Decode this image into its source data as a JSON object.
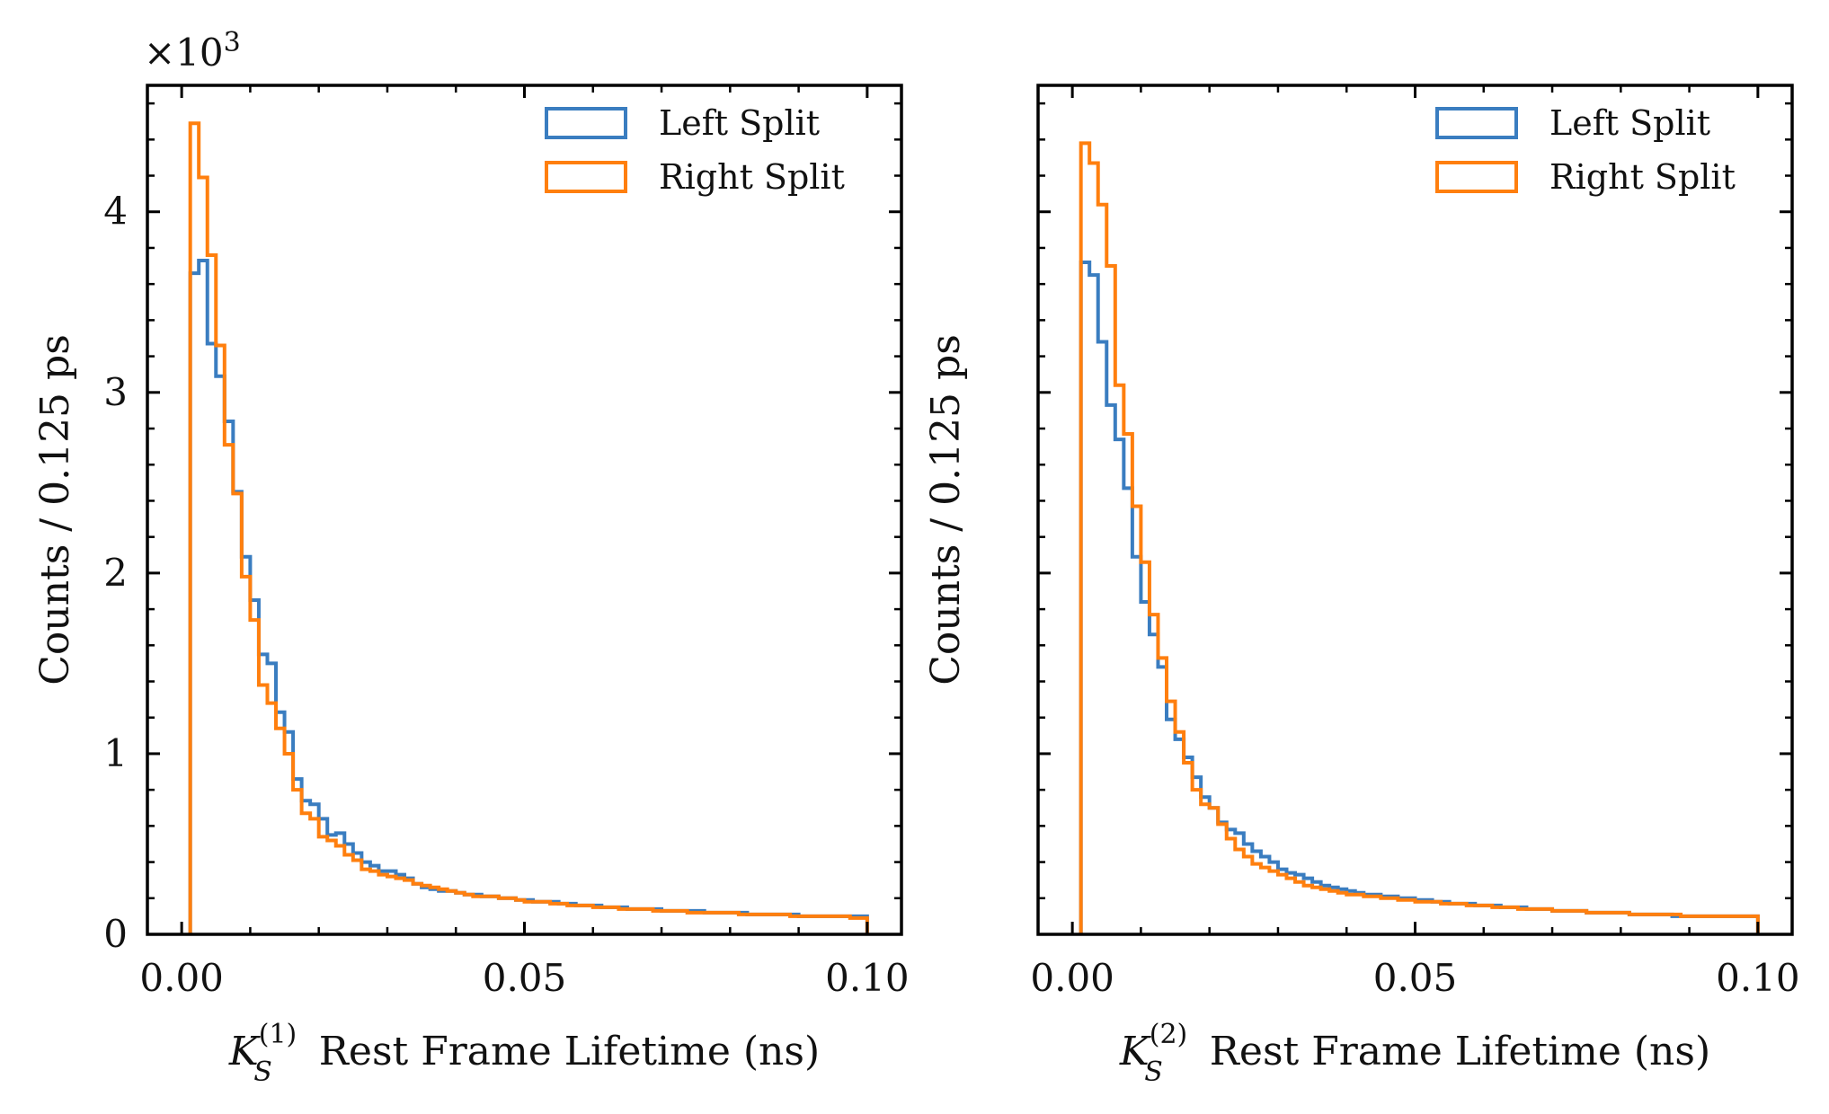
{
  "chart_data": [
    {
      "type": "line",
      "panel": "left",
      "multiplier": "×10",
      "multiplier_exp": "3",
      "xlabel": {
        "symbol": "K",
        "sub": "S",
        "sup": "(1)",
        "text": "Rest Frame Lifetime (ns)"
      },
      "ylabel": "Counts / 0.125 ps",
      "xlim": [
        -0.005,
        0.105
      ],
      "ylim": [
        0,
        4.7
      ],
      "xticks": [
        0.0,
        0.05,
        0.1
      ],
      "xtick_labels": [
        "0.00",
        "0.05",
        "0.10"
      ],
      "yticks": [
        0,
        1,
        2,
        3,
        4
      ],
      "ytick_labels": [
        "0",
        "1",
        "2",
        "3",
        "4"
      ],
      "legend": {
        "position": "top-right"
      },
      "bin_edges": {
        "start": 0.00125,
        "width": 0.00125,
        "count": 79
      },
      "series": [
        {
          "name": "Left Split",
          "color": "#3a7dc0",
          "values": [
            3.66,
            3.73,
            3.27,
            3.09,
            2.84,
            2.45,
            2.09,
            1.85,
            1.55,
            1.5,
            1.23,
            1.12,
            0.86,
            0.74,
            0.72,
            0.64,
            0.55,
            0.56,
            0.5,
            0.45,
            0.4,
            0.38,
            0.35,
            0.35,
            0.33,
            0.31,
            0.28,
            0.26,
            0.25,
            0.24,
            0.24,
            0.23,
            0.22,
            0.22,
            0.21,
            0.21,
            0.2,
            0.2,
            0.19,
            0.19,
            0.18,
            0.18,
            0.18,
            0.17,
            0.17,
            0.16,
            0.16,
            0.16,
            0.15,
            0.15,
            0.15,
            0.14,
            0.14,
            0.14,
            0.14,
            0.13,
            0.13,
            0.13,
            0.13,
            0.13,
            0.12,
            0.12,
            0.12,
            0.12,
            0.12,
            0.11,
            0.11,
            0.11,
            0.11,
            0.11,
            0.11,
            0.1,
            0.1,
            0.1,
            0.1,
            0.1,
            0.1,
            0.1,
            0.1
          ]
        },
        {
          "name": "Right Split",
          "color": "#ff7f0e",
          "values": [
            4.49,
            4.19,
            3.76,
            3.26,
            2.71,
            2.44,
            1.98,
            1.74,
            1.38,
            1.28,
            1.14,
            1.0,
            0.8,
            0.67,
            0.64,
            0.54,
            0.52,
            0.49,
            0.44,
            0.41,
            0.36,
            0.35,
            0.33,
            0.32,
            0.31,
            0.3,
            0.28,
            0.27,
            0.26,
            0.25,
            0.24,
            0.23,
            0.22,
            0.21,
            0.21,
            0.21,
            0.2,
            0.2,
            0.19,
            0.18,
            0.18,
            0.18,
            0.17,
            0.17,
            0.16,
            0.16,
            0.16,
            0.15,
            0.15,
            0.15,
            0.14,
            0.14,
            0.14,
            0.14,
            0.13,
            0.13,
            0.13,
            0.13,
            0.12,
            0.12,
            0.12,
            0.12,
            0.12,
            0.12,
            0.11,
            0.11,
            0.11,
            0.11,
            0.11,
            0.11,
            0.1,
            0.1,
            0.1,
            0.1,
            0.1,
            0.1,
            0.1,
            0.09,
            0.09
          ]
        }
      ]
    },
    {
      "type": "line",
      "panel": "right",
      "xlabel": {
        "symbol": "K",
        "sub": "S",
        "sup": "(2)",
        "text": "Rest Frame Lifetime (ns)"
      },
      "ylabel": "Counts / 0.125 ps",
      "xlim": [
        -0.005,
        0.105
      ],
      "ylim": [
        0,
        4.7
      ],
      "xticks": [
        0.0,
        0.05,
        0.1
      ],
      "xtick_labels": [
        "0.00",
        "0.05",
        "0.10"
      ],
      "yticks": [
        0,
        1,
        2,
        3,
        4
      ],
      "ytick_labels": [],
      "legend": {
        "position": "top-right"
      },
      "bin_edges": {
        "start": 0.00125,
        "width": 0.00125,
        "count": 79
      },
      "series": [
        {
          "name": "Left Split",
          "color": "#3a7dc0",
          "values": [
            3.72,
            3.65,
            3.28,
            2.93,
            2.74,
            2.47,
            2.09,
            1.84,
            1.66,
            1.48,
            1.19,
            1.08,
            0.98,
            0.87,
            0.76,
            0.7,
            0.62,
            0.58,
            0.56,
            0.5,
            0.46,
            0.43,
            0.4,
            0.36,
            0.34,
            0.33,
            0.31,
            0.29,
            0.27,
            0.26,
            0.25,
            0.24,
            0.23,
            0.22,
            0.22,
            0.21,
            0.21,
            0.2,
            0.2,
            0.19,
            0.19,
            0.18,
            0.18,
            0.17,
            0.17,
            0.17,
            0.16,
            0.16,
            0.16,
            0.15,
            0.15,
            0.15,
            0.14,
            0.14,
            0.14,
            0.13,
            0.13,
            0.13,
            0.13,
            0.12,
            0.12,
            0.12,
            0.12,
            0.12,
            0.11,
            0.11,
            0.11,
            0.11,
            0.11,
            0.1,
            0.1,
            0.1,
            0.1,
            0.1,
            0.1,
            0.1,
            0.1,
            0.1,
            0.1
          ]
        },
        {
          "name": "Right Split",
          "color": "#ff7f0e",
          "values": [
            4.38,
            4.27,
            4.04,
            3.7,
            3.04,
            2.77,
            2.37,
            2.06,
            1.77,
            1.53,
            1.29,
            1.12,
            0.95,
            0.8,
            0.72,
            0.7,
            0.61,
            0.53,
            0.47,
            0.43,
            0.39,
            0.37,
            0.35,
            0.33,
            0.31,
            0.29,
            0.27,
            0.26,
            0.25,
            0.24,
            0.23,
            0.22,
            0.22,
            0.21,
            0.21,
            0.2,
            0.2,
            0.19,
            0.19,
            0.18,
            0.18,
            0.18,
            0.17,
            0.17,
            0.17,
            0.16,
            0.16,
            0.16,
            0.15,
            0.15,
            0.15,
            0.14,
            0.14,
            0.14,
            0.14,
            0.13,
            0.13,
            0.13,
            0.13,
            0.12,
            0.12,
            0.12,
            0.12,
            0.12,
            0.11,
            0.11,
            0.11,
            0.11,
            0.11,
            0.11,
            0.1,
            0.1,
            0.1,
            0.1,
            0.1,
            0.1,
            0.1,
            0.1,
            0.1
          ]
        }
      ]
    }
  ]
}
